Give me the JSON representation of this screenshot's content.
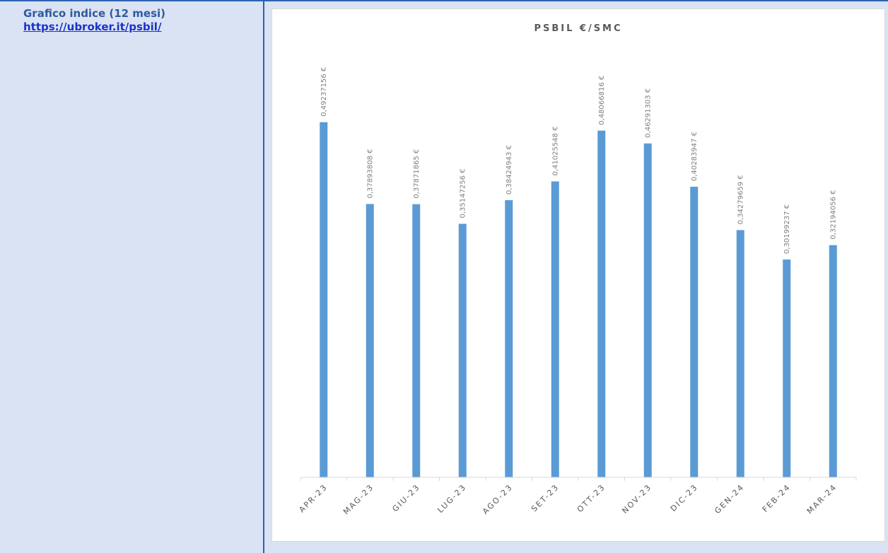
{
  "left_cell": {
    "title": "Grafico indice (12 mesi)",
    "link": "https://ubroker.it/psbil/"
  },
  "colors": {
    "bar": "#5b9bd5",
    "cell_bg": "#dae3f3",
    "border": "#2e62b0"
  },
  "chart_data": {
    "type": "bar",
    "title": "PSBIL €/SMC",
    "categories": [
      "APR-23",
      "MAG-23",
      "GIU-23",
      "LUG-23",
      "AGO-23",
      "SET-23",
      "OTT-23",
      "NOV-23",
      "DIC-23",
      "GEN-24",
      "FEB-24",
      "MAR-24"
    ],
    "values": [
      0.49237156,
      0.37893808,
      0.37871865,
      0.35147256,
      0.38424943,
      0.41025548,
      0.48066816,
      0.46291303,
      0.40283947,
      0.34279659,
      0.30199237,
      0.32194056
    ],
    "data_labels": [
      "0,49237156 €",
      "0,37893808 €",
      "0,37871865 €",
      "0,35147256 €",
      "0,38424943 €",
      "0,41025548 €",
      "0,48066816 €",
      "0,46291303 €",
      "0,40283947 €",
      "0,34279659 €",
      "0,30199237 €",
      "0,32194056 €"
    ],
    "xlabel": "",
    "ylabel": "",
    "ylim": [
      0,
      0.5
    ],
    "grid": false,
    "legend": "none"
  }
}
